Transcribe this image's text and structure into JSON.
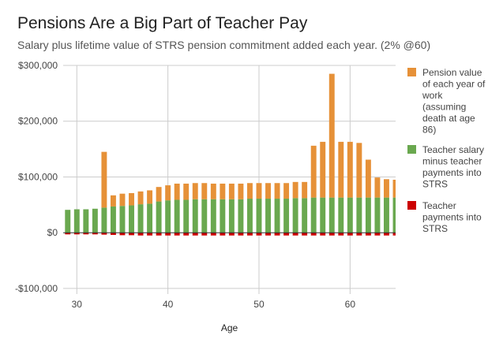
{
  "chart_data": {
    "type": "bar",
    "stacked": true,
    "title": "Pensions Are a Big Part of Teacher Pay",
    "subtitle": "Salary plus lifetime value of STRS pension commitment added each year. (2% @60)",
    "xlabel": "Age",
    "ylabel": "",
    "x_ticks": [
      30,
      40,
      50,
      60
    ],
    "y_ticks": [
      -100000,
      0,
      100000,
      200000,
      300000
    ],
    "y_tick_labels": [
      "-$100,000",
      "$0",
      "$100,000",
      "$200,000",
      "$300,000"
    ],
    "xlim": [
      28.5,
      65
    ],
    "ylim": [
      -110000,
      300000
    ],
    "grid": true,
    "legend_position": "right",
    "x": [
      29,
      30,
      31,
      32,
      33,
      34,
      35,
      36,
      37,
      38,
      39,
      40,
      41,
      42,
      43,
      44,
      45,
      46,
      47,
      48,
      49,
      50,
      51,
      52,
      53,
      54,
      55,
      56,
      57,
      58,
      59,
      60,
      61,
      62,
      63,
      64,
      65
    ],
    "series": [
      {
        "name": "Pension value of each year of work (assuming death at age 86)",
        "color": "#e69138",
        "values": [
          0,
          0,
          0,
          0,
          100000,
          20000,
          22000,
          22000,
          23000,
          24000,
          26000,
          27000,
          29000,
          29000,
          29000,
          29000,
          28000,
          28000,
          28000,
          28000,
          28000,
          28000,
          28000,
          28000,
          28000,
          29000,
          29000,
          93000,
          100000,
          222000,
          100000,
          100000,
          98000,
          68000,
          36000,
          33000,
          32000
        ]
      },
      {
        "name": "Teacher salary minus teacher payments into STRS",
        "color": "#6aa84f",
        "values": [
          41000,
          42000,
          42000,
          43000,
          45000,
          47000,
          48000,
          49000,
          51000,
          52000,
          56000,
          58000,
          59000,
          59000,
          60000,
          60000,
          60000,
          60000,
          60000,
          60000,
          61000,
          61000,
          61000,
          61000,
          61000,
          62000,
          62000,
          63000,
          63000,
          63000,
          63000,
          63000,
          63000,
          63000,
          63000,
          63000,
          63000
        ]
      },
      {
        "name": "Teacher payments into STRS",
        "color": "#cc0000",
        "values": [
          -3000,
          -3000,
          -3000,
          -3000,
          -3500,
          -4000,
          -4500,
          -4500,
          -5000,
          -5000,
          -5000,
          -5000,
          -5000,
          -5000,
          -5000,
          -5000,
          -5000,
          -5000,
          -5000,
          -5000,
          -5000,
          -5000,
          -5000,
          -5000,
          -5000,
          -5000,
          -5000,
          -5000,
          -5000,
          -5000,
          -5000,
          -5000,
          -5000,
          -5000,
          -5000,
          -5000,
          -5000
        ]
      }
    ],
    "legend": [
      {
        "lines": [
          "Pension value",
          "of each year of",
          "work",
          "(assuming",
          "death at age",
          "86)"
        ],
        "color": "#e69138"
      },
      {
        "lines": [
          "Teacher salary",
          "minus teacher",
          "payments into",
          "STRS"
        ],
        "color": "#6aa84f"
      },
      {
        "lines": [
          "Teacher",
          "payments into",
          "STRS"
        ],
        "color": "#cc0000"
      }
    ]
  }
}
